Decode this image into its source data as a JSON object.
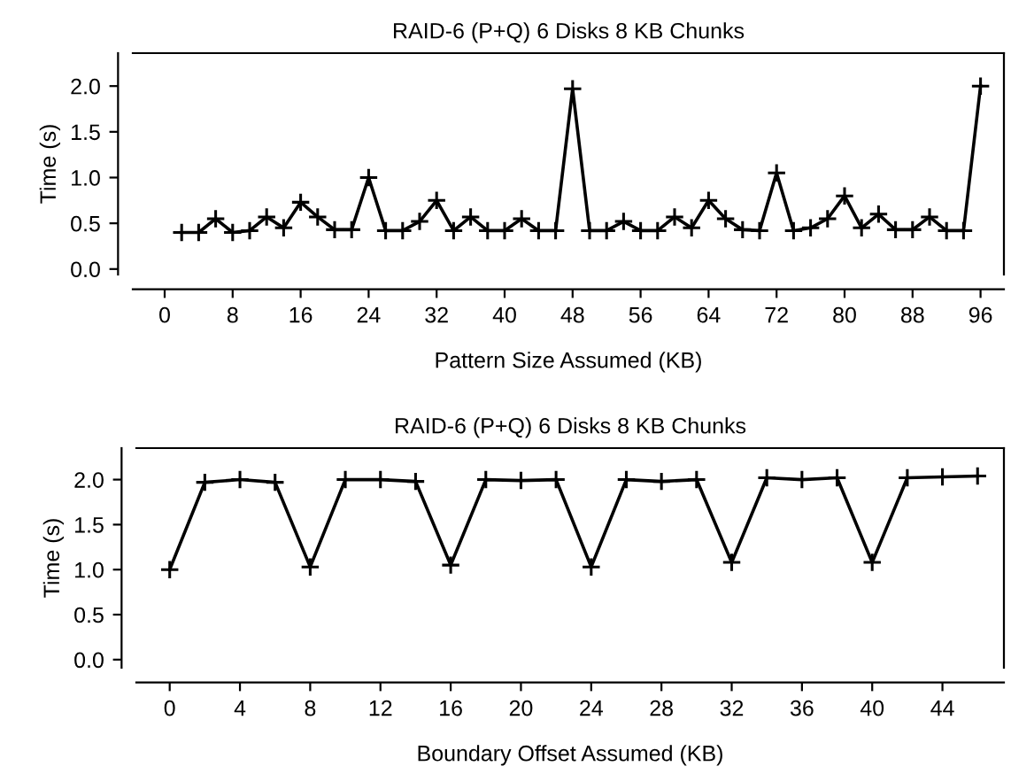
{
  "chart_data": [
    {
      "type": "line",
      "title": "RAID-6 (P+Q) 6 Disks 8 KB Chunks",
      "xlabel": "Pattern Size Assumed (KB)",
      "ylabel": "Time (s)",
      "marker": "cross",
      "line_style": "solid",
      "grid": false,
      "x": [
        2,
        4,
        6,
        8,
        10,
        12,
        14,
        16,
        18,
        20,
        22,
        24,
        26,
        28,
        30,
        32,
        34,
        36,
        38,
        40,
        42,
        44,
        46,
        48,
        50,
        52,
        54,
        56,
        58,
        60,
        62,
        64,
        66,
        68,
        70,
        72,
        74,
        76,
        78,
        80,
        82,
        84,
        86,
        88,
        90,
        92,
        94,
        96
      ],
      "series": [
        {
          "color": "#000000",
          "values": [
            0.4,
            0.4,
            0.55,
            0.4,
            0.42,
            0.57,
            0.45,
            0.73,
            0.57,
            0.43,
            0.43,
            1.0,
            0.42,
            0.42,
            0.52,
            0.75,
            0.42,
            0.57,
            0.42,
            0.42,
            0.55,
            0.42,
            0.42,
            1.97,
            0.42,
            0.42,
            0.52,
            0.42,
            0.42,
            0.57,
            0.45,
            0.75,
            0.55,
            0.43,
            0.42,
            1.05,
            0.42,
            0.45,
            0.55,
            0.8,
            0.45,
            0.6,
            0.43,
            0.43,
            0.57,
            0.42,
            0.42,
            2.0
          ]
        }
      ],
      "xlim": [
        -3.75,
        98.75
      ],
      "xticks": [
        0,
        8,
        16,
        24,
        32,
        40,
        48,
        56,
        64,
        72,
        80,
        88,
        96
      ],
      "ylim": [
        -0.06,
        2.36
      ],
      "yticks": [
        {
          "value": 0,
          "label": "0.0"
        },
        {
          "value": 0.5,
          "label": "0.5"
        },
        {
          "value": 1,
          "label": "1.0"
        },
        {
          "value": 1.5,
          "label": "1.5"
        },
        {
          "value": 2,
          "label": "2.0"
        }
      ]
    },
    {
      "type": "line",
      "title": "RAID-6 (P+Q) 6 Disks 8 KB Chunks",
      "xlabel": "Boundary Offset Assumed (KB)",
      "ylabel": "Time (s)",
      "marker": "cross",
      "line_style": "solid",
      "grid": false,
      "x": [
        0,
        2,
        4,
        6,
        8,
        10,
        12,
        14,
        16,
        18,
        20,
        22,
        24,
        26,
        28,
        30,
        32,
        34,
        36,
        38,
        40,
        42,
        44,
        46
      ],
      "series": [
        {
          "color": "#000000",
          "values": [
            1.0,
            1.97,
            2.0,
            1.97,
            1.03,
            2.0,
            2.0,
            1.98,
            1.05,
            2.0,
            1.99,
            2.0,
            1.03,
            2.0,
            1.98,
            2.0,
            1.08,
            2.02,
            2.0,
            2.02,
            1.08,
            2.02,
            2.03,
            2.04
          ]
        }
      ],
      "xlim": [
        -1.9,
        47.5
      ],
      "xticks": [
        0,
        4,
        8,
        12,
        16,
        20,
        24,
        28,
        32,
        36,
        40,
        44
      ],
      "ylim": [
        -0.09,
        2.35
      ],
      "yticks": [
        {
          "value": 0,
          "label": "0.0"
        },
        {
          "value": 0.5,
          "label": "0.5"
        },
        {
          "value": 1,
          "label": "1.0"
        },
        {
          "value": 1.5,
          "label": "1.5"
        },
        {
          "value": 2,
          "label": "2.0"
        }
      ]
    }
  ]
}
